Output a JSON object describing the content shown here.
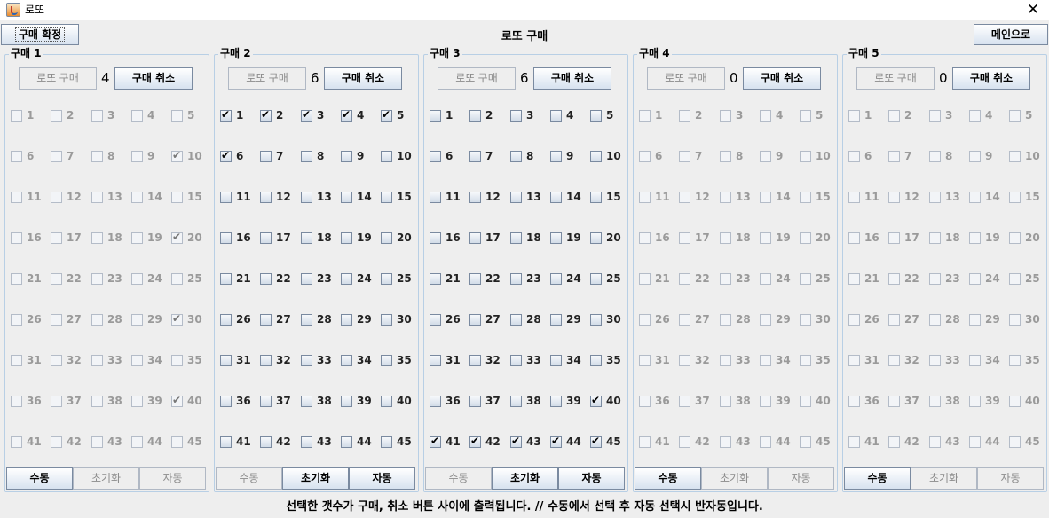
{
  "window": {
    "title": "로또",
    "close_glyph": "✕"
  },
  "header": {
    "confirm_label": "구매 확정",
    "title": "로또 구매",
    "main_label": "메인으로"
  },
  "panels": [
    {
      "title": "구매 1",
      "buy_label": "로또 구매",
      "count": "4",
      "cancel_label": "구매 취소",
      "enabled": false,
      "checked": [
        10,
        20,
        30,
        40
      ],
      "modes": [
        "수동",
        "초기화",
        "자동"
      ],
      "active_modes": [
        0
      ]
    },
    {
      "title": "구매 2",
      "buy_label": "로또 구매",
      "count": "6",
      "cancel_label": "구매 취소",
      "enabled": true,
      "checked": [
        1,
        2,
        3,
        4,
        5,
        6
      ],
      "modes": [
        "수동",
        "초기화",
        "자동"
      ],
      "active_modes": [
        1,
        2
      ]
    },
    {
      "title": "구매 3",
      "buy_label": "로또 구매",
      "count": "6",
      "cancel_label": "구매 취소",
      "enabled": true,
      "checked": [
        40,
        41,
        42,
        43,
        44,
        45
      ],
      "modes": [
        "수동",
        "초기화",
        "자동"
      ],
      "active_modes": [
        1,
        2
      ]
    },
    {
      "title": "구매 4",
      "buy_label": "로또 구매",
      "count": "0",
      "cancel_label": "구매 취소",
      "enabled": false,
      "checked": [],
      "modes": [
        "수동",
        "초기화",
        "자동"
      ],
      "active_modes": [
        0
      ]
    },
    {
      "title": "구매 5",
      "buy_label": "로또 구매",
      "count": "0",
      "cancel_label": "구매 취소",
      "enabled": false,
      "checked": [],
      "modes": [
        "수동",
        "초기화",
        "자동"
      ],
      "active_modes": [
        0
      ]
    }
  ],
  "numbers": [
    "1",
    "2",
    "3",
    "4",
    "5",
    "6",
    "7",
    "8",
    "9",
    "10",
    "11",
    "12",
    "13",
    "14",
    "15",
    "16",
    "17",
    "18",
    "19",
    "20",
    "21",
    "22",
    "23",
    "24",
    "25",
    "26",
    "27",
    "28",
    "29",
    "30",
    "31",
    "32",
    "33",
    "34",
    "35",
    "36",
    "37",
    "38",
    "39",
    "40",
    "41",
    "42",
    "43",
    "44",
    "45"
  ],
  "footer": {
    "note": "선택한 갯수가 구매, 취소 버튼 사이에 출력됩니다. // 수동에서 선택 후 자동 선택시 반자동입니다."
  },
  "icons": {
    "app": "java-cup-icon",
    "close": "close-icon"
  }
}
